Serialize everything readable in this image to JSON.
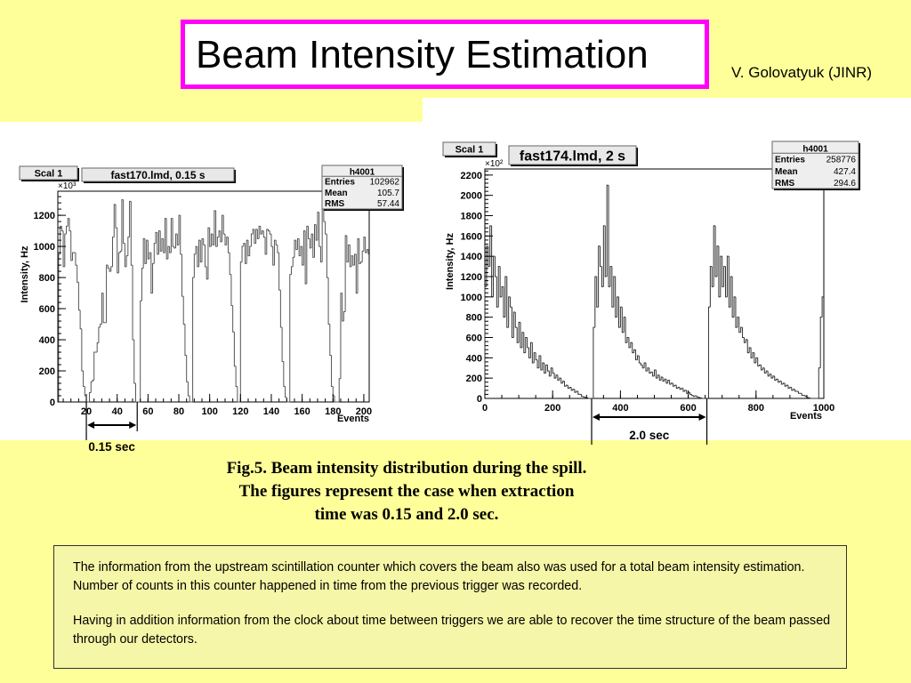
{
  "slide": {
    "title": "Beam Intensity Estimation",
    "author": "V. Golovatyuk (JINR)",
    "caption_lines": [
      "Fig.5. Beam intensity distribution during the spill.",
      "The figures represent the case when extraction",
      "time was 0.15 and 2.0 sec."
    ],
    "body_paragraphs": [
      "The information from the upstream scintillation counter which covers the beam also was used for a total beam intensity estimation. Number of counts in this counter happened in time from the previous trigger was recorded.",
      " Having in addition information from the clock about time between triggers we are able to recover the time structure of the beam passed through our detectors."
    ],
    "colors": {
      "background": "#ffff99",
      "title_border": "#ff00ff",
      "textbox_fill": "#f6f6a8"
    }
  },
  "chart_data": [
    {
      "type": "histogram",
      "pad_label": "Scal 1",
      "title": "fast170.lmd, 0.15 s",
      "stats": {
        "name": "h4001",
        "rows": [
          [
            "Entries",
            "102962"
          ],
          [
            "Mean",
            "105.7"
          ],
          [
            "RMS",
            "57.44"
          ]
        ]
      },
      "xlabel": "Events",
      "ylabel": "Intensity, Hz",
      "y_multiplier": "×10³",
      "xlim": [
        1.5,
        203.5
      ],
      "ylim": [
        0,
        1355
      ],
      "xticks": [
        "20",
        "40",
        "60",
        "80",
        "100",
        "120",
        "140",
        "160",
        "180",
        "200"
      ],
      "yticks": [
        "0",
        "200",
        "400",
        "600",
        "800",
        "1000",
        "1200"
      ],
      "x_start": 2,
      "bin_width": 1,
      "values": [
        950,
        1130,
        1100,
        870,
        1080,
        1130,
        1180,
        1100,
        910,
        960,
        960,
        880,
        770,
        590,
        470,
        200,
        100,
        40,
        0,
        0,
        60,
        130,
        140,
        320,
        320,
        380,
        480,
        500,
        700,
        510,
        510,
        880,
        860,
        840,
        870,
        1060,
        1270,
        1120,
        830,
        960,
        970,
        1300,
        1020,
        870,
        940,
        1060,
        1290,
        880,
        400,
        120,
        0,
        0,
        0,
        650,
        860,
        1050,
        890,
        1040,
        920,
        960,
        700,
        890,
        1020,
        1090,
        950,
        1100,
        970,
        1050,
        960,
        1180,
        920,
        1000,
        960,
        1180,
        1000,
        990,
        1080,
        1010,
        1200,
        950,
        680,
        500,
        300,
        130,
        40,
        0,
        0,
        800,
        950,
        1000,
        870,
        1040,
        900,
        1050,
        1010,
        870,
        790,
        1120,
        1000,
        1080,
        1010,
        1230,
        1000,
        1060,
        1100,
        1030,
        1200,
        1080,
        1010,
        1060,
        960,
        820,
        620,
        450,
        230,
        100,
        0,
        0,
        900,
        1000,
        1020,
        890,
        1040,
        940,
        1000,
        1080,
        1110,
        1020,
        1110,
        1050,
        1130,
        1080,
        1100,
        1060,
        950,
        1110,
        1100,
        1080,
        1000,
        880,
        1040,
        1010,
        960,
        720,
        480,
        260,
        100,
        30,
        0,
        0,
        820,
        870,
        930,
        1040,
        980,
        1050,
        940,
        1000,
        880,
        1100,
        760,
        1130,
        1050,
        990,
        1080,
        930,
        1140,
        1040,
        1220,
        1000,
        900,
        1260,
        1160,
        1080,
        800,
        500,
        300,
        100,
        40,
        0,
        0,
        0,
        150,
        700,
        520,
        580,
        1070,
        900,
        1010,
        870,
        940,
        880,
        950,
        700,
        1050,
        890,
        900,
        970,
        1060,
        960,
        980,
        950
      ],
      "annotation": {
        "label": "0.15 sec",
        "from": 20,
        "to": 53
      }
    },
    {
      "type": "histogram",
      "pad_label": "Scal 1",
      "title": "fast174.lmd, 2 s",
      "stats": {
        "name": "h4001",
        "rows": [
          [
            "Entries",
            "258776"
          ],
          [
            "Mean",
            "427.4"
          ],
          [
            "RMS",
            "294.6"
          ]
        ]
      },
      "xlabel": "Events",
      "ylabel": "Intensity, Hz",
      "y_multiplier": "×10²",
      "xlim": [
        0,
        1000
      ],
      "ylim": [
        0,
        2260
      ],
      "xticks": [
        "0",
        "200",
        "400",
        "600",
        "800",
        "1000"
      ],
      "yticks": [
        "0",
        "200",
        "400",
        "600",
        "800",
        "1000",
        "1200",
        "1400",
        "1600",
        "1800",
        "2000",
        "2200"
      ],
      "x_start": 0,
      "bin_width": 5,
      "values": [
        1100,
        1500,
        1300,
        1700,
        1000,
        1400,
        1200,
        900,
        1300,
        1000,
        1100,
        800,
        1200,
        700,
        1000,
        900,
        600,
        850,
        700,
        550,
        750,
        500,
        650,
        450,
        600,
        500,
        400,
        550,
        350,
        450,
        380,
        300,
        420,
        280,
        350,
        250,
        330,
        270,
        220,
        300,
        250,
        200,
        230,
        180,
        200,
        150,
        170,
        120,
        130,
        100,
        110,
        80,
        90,
        60,
        70,
        40,
        40,
        20,
        15,
        10,
        5,
        0,
        0,
        0,
        700,
        1200,
        900,
        1500,
        1300,
        1100,
        1700,
        1200,
        2100,
        1100,
        1300,
        900,
        1200,
        800,
        1000,
        700,
        900,
        650,
        800,
        550,
        600,
        500,
        550,
        450,
        480,
        380,
        420,
        350,
        330,
        300,
        350,
        270,
        300,
        250,
        260,
        220,
        280,
        200,
        230,
        180,
        210,
        170,
        190,
        150,
        180,
        140,
        150,
        120,
        130,
        100,
        110,
        90,
        100,
        70,
        80,
        50,
        60,
        40,
        30,
        20,
        25,
        15,
        10,
        5,
        0,
        0,
        0,
        0,
        900,
        1300,
        1100,
        1700,
        1200,
        1500,
        1000,
        1400,
        1100,
        1300,
        1000,
        1400,
        900,
        1200,
        800,
        1000,
        700,
        800,
        650,
        700,
        600,
        550,
        580,
        450,
        500,
        400,
        450,
        350,
        400,
        320,
        330,
        280,
        300,
        250,
        270,
        220,
        240,
        200,
        220,
        180,
        190,
        160,
        170,
        140,
        150,
        120,
        130,
        100,
        110,
        80,
        90,
        70,
        70,
        50,
        50,
        30,
        30,
        20,
        10,
        5,
        0,
        0,
        0,
        0,
        0,
        300,
        800,
        1000
      ],
      "annotation": {
        "label": "2.0 sec",
        "from": 315,
        "to": 655
      }
    }
  ]
}
